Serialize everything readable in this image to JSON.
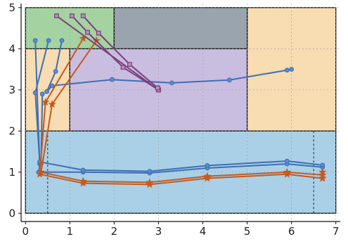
{
  "chart_data": {
    "type": "line",
    "title": "",
    "xlabel": "",
    "ylabel": "",
    "xlim": [
      -0.1,
      7.1
    ],
    "ylim": [
      -0.2,
      5.1
    ],
    "grid": true,
    "x_ticks": [
      0,
      1,
      2,
      3,
      4,
      5,
      6,
      7
    ],
    "y_ticks": [
      0,
      1,
      2,
      3,
      4,
      5
    ],
    "x_tick_labels": [
      "0",
      "1",
      "2",
      "3",
      "4",
      "5",
      "6",
      "7"
    ],
    "y_tick_labels": [
      "0",
      "1",
      "2",
      "3",
      "4",
      "5"
    ],
    "regions": [
      {
        "x0": 0,
        "y0": 0,
        "x1": 7,
        "y1": 2,
        "color": "#a9d0e6"
      },
      {
        "x0": 0,
        "y0": 2,
        "x1": 1,
        "y1": 4,
        "color": "#f8dcb2"
      },
      {
        "x0": 1,
        "y0": 2,
        "x1": 5,
        "y1": 4,
        "color": "#c9bde0"
      },
      {
        "x0": 5,
        "y0": 2,
        "x1": 7,
        "y1": 5,
        "color": "#f8dcb2"
      },
      {
        "x0": 0,
        "y0": 4,
        "x1": 2,
        "y1": 5,
        "color": "#a4d3a1"
      },
      {
        "x0": 2,
        "y0": 4,
        "x1": 5,
        "y1": 5,
        "color": "#9aa4ae"
      }
    ],
    "vlines": [
      {
        "x": 0.5,
        "y0": 0,
        "y1": 2
      },
      {
        "x": 6.5,
        "y0": 0,
        "y1": 2
      }
    ],
    "series": [
      {
        "color": "#3f6fb5",
        "marker": "circle",
        "points": [
          [
            0.22,
            4.2
          ],
          [
            0.32,
            1.2
          ],
          [
            0.3,
            1.0
          ],
          [
            0.3,
            1.0
          ],
          [
            1.3,
            1.0
          ],
          [
            2.8,
            0.98
          ],
          [
            4.1,
            1.1
          ],
          [
            5.9,
            1.2
          ],
          [
            6.7,
            1.12
          ]
        ]
      },
      {
        "color": "#3f6fb5",
        "marker": "circle",
        "points": [
          [
            0.52,
            4.2
          ],
          [
            0.22,
            2.93
          ],
          [
            0.32,
            1.25
          ],
          [
            1.3,
            1.05
          ],
          [
            2.8,
            1.02
          ],
          [
            4.1,
            1.16
          ],
          [
            5.9,
            1.27
          ],
          [
            6.7,
            1.17
          ]
        ]
      },
      {
        "color": "#3f6fb5",
        "marker": "circle",
        "points": [
          [
            0.82,
            4.2
          ],
          [
            0.68,
            3.45
          ],
          [
            0.48,
            2.96
          ],
          [
            0.6,
            3.1
          ],
          [
            1.95,
            3.25
          ],
          [
            3.3,
            3.17
          ],
          [
            4.6,
            3.24
          ],
          [
            5.9,
            3.48
          ],
          [
            6.0,
            3.5
          ]
        ]
      },
      {
        "color": "#3f6fb5",
        "marker": "circle",
        "points": [
          [
            0.38,
            2.9
          ],
          [
            0.35,
            1.2
          ]
        ]
      },
      {
        "color": "#c65a1e",
        "marker": "star",
        "points": [
          [
            1.3,
            4.25
          ],
          [
            0.45,
            2.7
          ],
          [
            0.32,
            0.95
          ],
          [
            1.3,
            0.73
          ],
          [
            2.8,
            0.7
          ],
          [
            4.1,
            0.85
          ],
          [
            5.9,
            0.95
          ],
          [
            6.7,
            0.85
          ]
        ]
      },
      {
        "color": "#c65a1e",
        "marker": "star",
        "points": [
          [
            1.6,
            4.2
          ],
          [
            0.6,
            2.65
          ],
          [
            0.35,
            1.0
          ],
          [
            1.3,
            0.78
          ],
          [
            2.8,
            0.75
          ],
          [
            4.1,
            0.9
          ],
          [
            5.9,
            1.0
          ],
          [
            6.7,
            0.93
          ]
        ]
      },
      {
        "color": "#c65a1e",
        "marker": "star",
        "points": [
          [
            6.7,
            1.0
          ],
          [
            6.7,
            0.85
          ]
        ]
      },
      {
        "color": "#7b3f7e",
        "marker": "square",
        "points": [
          [
            0.7,
            4.8
          ],
          [
            3.0,
            3.0
          ]
        ]
      },
      {
        "color": "#7b3f7e",
        "marker": "square",
        "points": [
          [
            1.05,
            4.8
          ],
          [
            1.4,
            4.4
          ],
          [
            2.2,
            3.55
          ],
          [
            3.0,
            3.0
          ]
        ]
      },
      {
        "color": "#7b3f7e",
        "marker": "square",
        "points": [
          [
            1.3,
            4.8
          ],
          [
            1.65,
            4.38
          ],
          [
            2.35,
            3.62
          ],
          [
            2.98,
            3.05
          ]
        ]
      }
    ]
  }
}
